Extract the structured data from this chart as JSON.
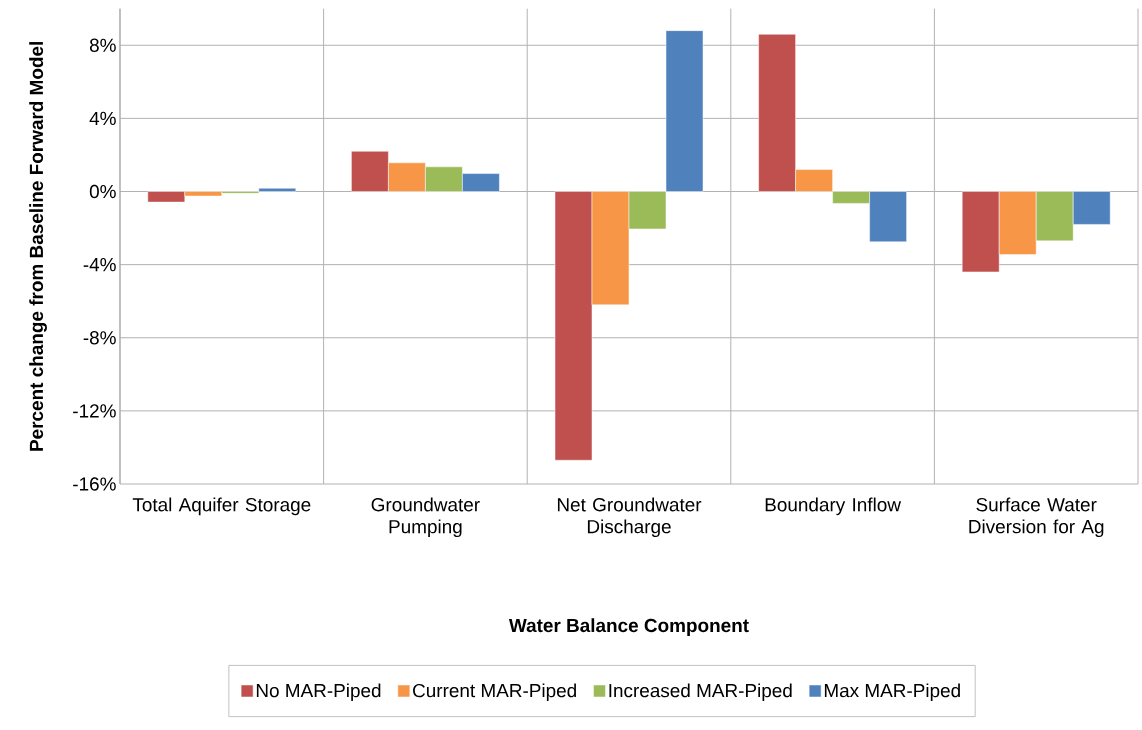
{
  "chart_data": {
    "type": "bar",
    "xlabel": "Water Balance Component",
    "ylabel": "Percent change from Baseline Forward Model",
    "categories": [
      "Total Aquifer Storage",
      "Groundwater Pumping",
      "Net Groundwater Discharge",
      "Boundary Inflow",
      "Surface Water Diversion for Ag"
    ],
    "series": [
      {
        "name": "No MAR-Piped",
        "color": "#c0504d",
        "values": [
          -0.58,
          2.2,
          -14.7,
          8.6,
          -4.4
        ]
      },
      {
        "name": "Current MAR-Piped",
        "color": "#f79646",
        "values": [
          -0.25,
          1.57,
          -6.2,
          1.2,
          -3.45
        ]
      },
      {
        "name": "Increased MAR-Piped",
        "color": "#9bbb59",
        "values": [
          -0.1,
          1.35,
          -2.05,
          -0.65,
          -2.7
        ]
      },
      {
        "name": "Max MAR-Piped",
        "color": "#4f81bd",
        "values": [
          0.18,
          0.98,
          8.8,
          -2.75,
          -1.8
        ]
      }
    ],
    "ylim": [
      -16,
      10
    ],
    "yticks": [
      {
        "value": -16,
        "label": "-16%"
      },
      {
        "value": -12,
        "label": "-12%"
      },
      {
        "value": -8,
        "label": "-8%"
      },
      {
        "value": -4,
        "label": "-4%"
      },
      {
        "value": 0,
        "label": "0%"
      },
      {
        "value": 4,
        "label": "4%"
      },
      {
        "value": 8,
        "label": "8%"
      }
    ],
    "grid": true,
    "legend": "bottom"
  }
}
